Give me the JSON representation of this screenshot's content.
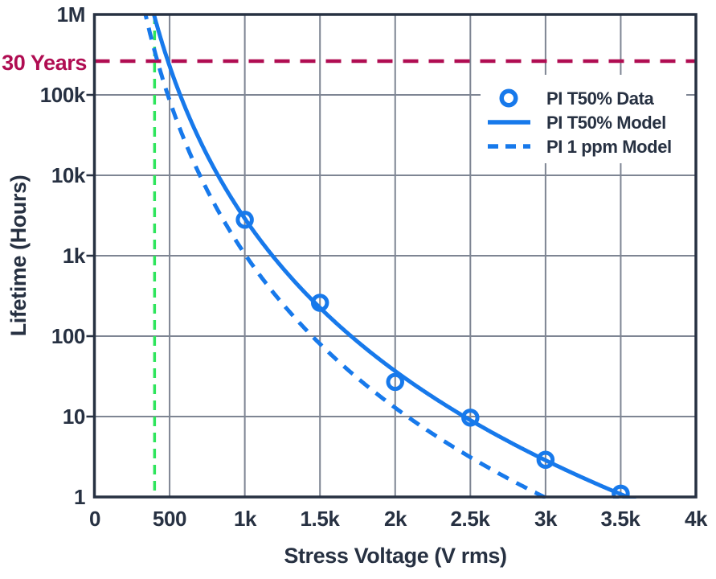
{
  "chart_data": {
    "type": "line",
    "title": "",
    "xlabel": "Stress Voltage (V rms)",
    "ylabel": "Lifetime (Hours)",
    "grid": true,
    "x_axis": {
      "scale": "linear",
      "min": 0,
      "max": 4000,
      "ticks": [
        {
          "value": 0,
          "label": "0"
        },
        {
          "value": 500,
          "label": "500"
        },
        {
          "value": 1000,
          "label": "1k"
        },
        {
          "value": 1500,
          "label": "1.5k"
        },
        {
          "value": 2000,
          "label": "2k"
        },
        {
          "value": 2500,
          "label": "2.5k"
        },
        {
          "value": 3000,
          "label": "3k"
        },
        {
          "value": 3500,
          "label": "3.5k"
        },
        {
          "value": 4000,
          "label": "4k"
        }
      ]
    },
    "y_axis": {
      "scale": "log",
      "min": 1,
      "max": 1000000,
      "ticks": [
        {
          "value": 1000000,
          "label": "1M"
        },
        {
          "value": 100000,
          "label": "100k"
        },
        {
          "value": 10000,
          "label": "10k"
        },
        {
          "value": 1000,
          "label": "1k"
        },
        {
          "value": 100,
          "label": "100"
        },
        {
          "value": 10,
          "label": "10"
        },
        {
          "value": 1,
          "label": "1"
        }
      ]
    },
    "series": [
      {
        "name": "PI T50% Data",
        "type": "scatter",
        "marker": "open-circle",
        "color": "#1779eb",
        "points": [
          [
            1000,
            2800
          ],
          [
            1500,
            260
          ],
          [
            2000,
            27
          ],
          [
            2500,
            9.7
          ],
          [
            3000,
            2.9
          ],
          [
            3500,
            1.1
          ]
        ]
      },
      {
        "name": "PI T50% Model",
        "type": "line",
        "style": "solid",
        "color": "#1779eb",
        "power_law": {
          "coefficient_at_1000v": 2900,
          "exponent": 6.3
        },
        "points": [
          [
            400,
            930000
          ],
          [
            489,
            262800
          ],
          [
            700,
            27000
          ],
          [
            1000,
            2900
          ],
          [
            1500,
            230
          ],
          [
            2000,
            37
          ],
          [
            2500,
            9
          ],
          [
            3000,
            2.8
          ],
          [
            3500,
            1.05
          ]
        ]
      },
      {
        "name": "PI 1 ppm Model",
        "type": "line",
        "style": "dashed",
        "color": "#1779eb",
        "power_law": {
          "coefficient_at_1000v": 1050,
          "exponent": 6.35
        },
        "points": [
          [
            340,
            1000000
          ],
          [
            420,
            262800
          ],
          [
            500,
            83000
          ],
          [
            700,
            10000
          ],
          [
            1000,
            1050
          ],
          [
            1500,
            80
          ],
          [
            2000,
            13
          ],
          [
            2500,
            3.1
          ],
          [
            2990,
            1
          ]
        ]
      }
    ],
    "annotations": [
      {
        "type": "hline",
        "label": "30 Years",
        "value_hours": 262800,
        "color": "#b00d52",
        "style": "dashed"
      },
      {
        "type": "vline",
        "label": "",
        "value_volts": 400,
        "color": "#2ee55c",
        "style": "dashed"
      }
    ],
    "legend": {
      "position": "upper-right",
      "items": [
        {
          "label": "PI T50% Data"
        },
        {
          "label": "PI T50% Model"
        },
        {
          "label": "PI 1 ppm Model"
        }
      ]
    },
    "colors": {
      "series_blue": "#1779eb",
      "thirty_years_line": "#b00d52",
      "safe_voltage_line": "#2ee55c",
      "grid": "#7e8593",
      "axis_frame": "#273142",
      "text": "#273142"
    }
  }
}
